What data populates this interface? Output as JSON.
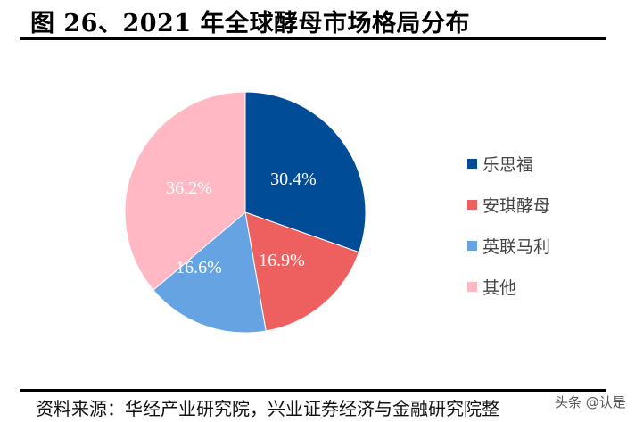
{
  "title": "图 26、2021 年全球酵母市场格局分布",
  "source": "资料来源：华经产业研究院，兴业证券经济与金融研究院整",
  "watermark": "头条 @认是",
  "legend": [
    {
      "label": "乐思福",
      "color": "#004C97"
    },
    {
      "label": "安琪酵母",
      "color": "#EE6060"
    },
    {
      "label": "英联马利",
      "color": "#66A3E3"
    },
    {
      "label": "其他",
      "color": "#FFB8C4"
    }
  ],
  "chart_data": {
    "type": "pie",
    "title": "2021 年全球酵母市场格局分布",
    "categories": [
      "乐思福",
      "安琪酵母",
      "英联马利",
      "其他"
    ],
    "values": [
      30.4,
      16.9,
      16.6,
      36.2
    ],
    "labels": [
      "30.4%",
      "16.9%",
      "16.6%",
      "36.2%"
    ],
    "colors": [
      "#004C97",
      "#EE6060",
      "#66A3E3",
      "#FFB8C4"
    ],
    "start_angle_deg": 0,
    "direction": "clockwise",
    "legend_position": "right"
  }
}
